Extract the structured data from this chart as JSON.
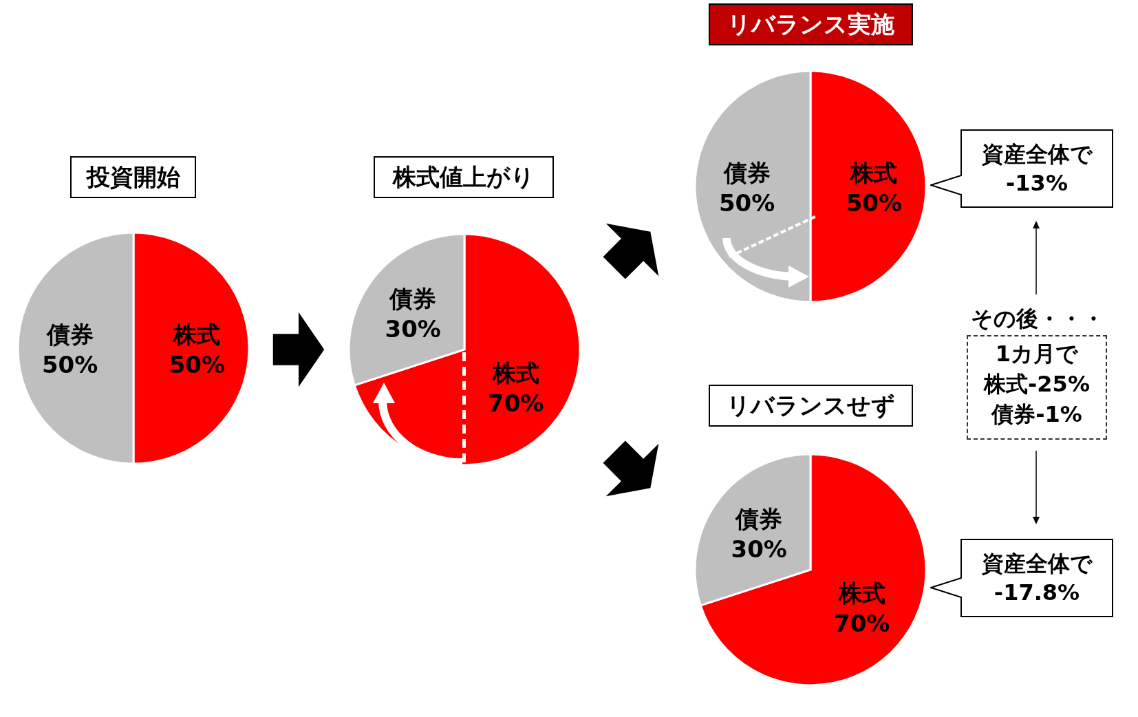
{
  "chart_data": [
    {
      "type": "pie",
      "title": "投資開始",
      "categories": [
        "株式",
        "債券"
      ],
      "values": [
        50,
        50
      ],
      "value_labels": [
        "50%",
        "50%"
      ],
      "colors": [
        "#ff0000",
        "#bfbfbf"
      ],
      "legend": false
    },
    {
      "type": "pie",
      "title": "株式値上がり",
      "categories": [
        "株式",
        "債券"
      ],
      "values": [
        70,
        30
      ],
      "value_labels": [
        "70%",
        "30%"
      ],
      "colors": [
        "#ff0000",
        "#bfbfbf"
      ],
      "legend": false
    },
    {
      "type": "pie",
      "title": "リバランス実施",
      "categories": [
        "株式",
        "債券"
      ],
      "values": [
        50,
        50
      ],
      "value_labels": [
        "50%",
        "50%"
      ],
      "colors": [
        "#ff0000",
        "#bfbfbf"
      ],
      "legend": false,
      "annotations": [
        "資産全体で\n-13%",
        "その後・・・",
        "1カ月で",
        "株式-25%",
        "債券-1%"
      ]
    },
    {
      "type": "pie",
      "title": "リバランスせず",
      "categories": [
        "株式",
        "債券"
      ],
      "values": [
        70,
        30
      ],
      "value_labels": [
        "70%",
        "30%"
      ],
      "colors": [
        "#ff0000",
        "#bfbfbf"
      ],
      "legend": false,
      "annotations": [
        "資産全体で\n-17.8%"
      ]
    }
  ]
}
